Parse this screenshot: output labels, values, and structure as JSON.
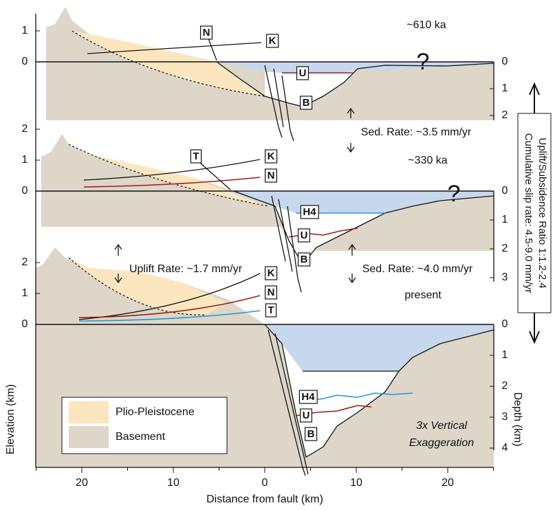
{
  "panels": [
    {
      "age": "~610 ka",
      "elevation_ticks": [
        0,
        1
      ],
      "depth_ticks": [
        0,
        1,
        2
      ],
      "horizons": [
        "N",
        "K",
        "U",
        "B"
      ],
      "query": "?",
      "rates": [
        "Sed. Rate: ~3.5 mm/yr"
      ]
    },
    {
      "age": "~330 ka",
      "elevation_ticks": [
        0,
        1,
        2
      ],
      "depth_ticks": [
        0,
        1,
        2,
        3
      ],
      "horizons": [
        "T",
        "K",
        "N",
        "H4",
        "U",
        "B"
      ],
      "query": "?",
      "rates": [
        "Uplift Rate: ~1.7 mm/yr",
        "Sed. Rate: ~4.0 mm/yr"
      ]
    },
    {
      "age": "present",
      "elevation_ticks": [
        0,
        1,
        2
      ],
      "depth_ticks": [
        0,
        1,
        2,
        3,
        4
      ],
      "horizons": [
        "K",
        "N",
        "T",
        "H4",
        "U",
        "B"
      ]
    }
  ],
  "legend": [
    "Plio-Pleistocene",
    "Basement"
  ],
  "exaggeration": [
    "3x Vertical",
    "Exaggeration"
  ],
  "x_axis": {
    "label": "Distance from fault (km)",
    "ticks": [
      {
        "value": -20,
        "label": "20"
      },
      {
        "value": -10,
        "label": "10"
      },
      0,
      10,
      20
    ]
  },
  "y_axis_label": "Elevation (km)",
  "depth_axis_label": "Depth (km)",
  "side_note": [
    "Uplift/Subsidence Ratio 1:1.2-2.4",
    "Cumulative slip rate: 4.5-9.0 mm/yr"
  ]
}
